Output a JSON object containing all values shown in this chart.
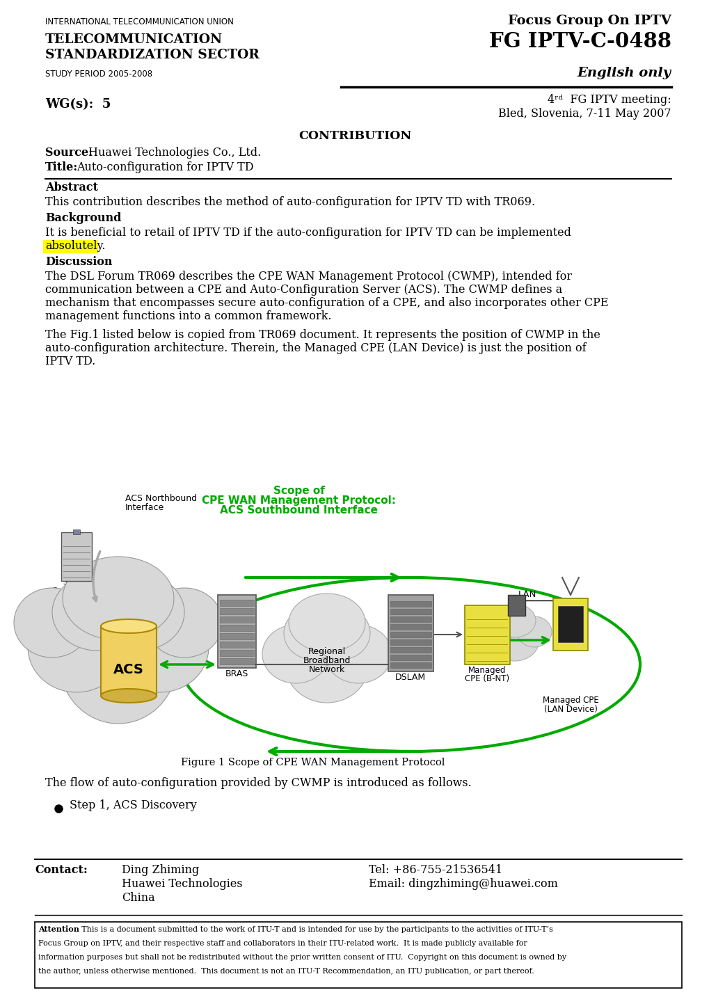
{
  "bg_color": "#ffffff",
  "header_left_line1": "INTERNATIONAL TELECOMMUNICATION UNION",
  "header_right_line1": "Focus Group On IPTV",
  "header_right_line2": "FG IPTV-C-0488",
  "header_left_bold1": "TELECOMMUNICATION",
  "header_left_bold2": "STANDARDIZATION SECTOR",
  "header_left_line3": "STUDY PERIOD 2005-2008",
  "header_right_line3": "English only",
  "wg_label": "WG(s):  5",
  "meeting_line1": "4ʳᵈ  FG IPTV meeting:",
  "meeting_line2": "Bled, Slovenia, 7-11 May 2007",
  "contrib_title": "CONTRIBUTION",
  "source_label": "Source:",
  "source_value": "Huawei Technologies Co., Ltd.",
  "title_label": "Title:",
  "title_value": "Auto-configuration for IPTV TD",
  "abstract_heading": "Abstract",
  "abstract_text": "This contribution describes the method of auto-configuration for IPTV TD with TR069.",
  "background_heading": "Background",
  "background_text1": "It is beneficial to retail of IPTV TD if the auto-configuration for IPTV TD can be implemented",
  "background_text2": "absolutely.",
  "discussion_heading": "Discussion",
  "disc1_l1": "The DSL Forum TR069 describes the CPE WAN Management Protocol (CWMP), intended for",
  "disc1_l2": "communication between a CPE and Auto-Configuration Server (ACS). The CWMP defines a",
  "disc1_l3": "mechanism that encompasses secure auto-configuration of a CPE, and also incorporates other CPE",
  "disc1_l4": "management functions into a common framework.",
  "disc2_l1": "The Fig.1 listed below is copied from TR069 document. It represents the position of CWMP in the",
  "disc2_l2": "auto-configuration architecture. Therein, the Managed CPE (LAN Device) is just the position of",
  "disc2_l3": "IPTV TD.",
  "fig_caption": "Figure 1 Scope of CPE WAN Management Protocol",
  "flow_text": "The flow of auto-configuration provided by CWMP is introduced as follows.",
  "bullet_text": "Step 1, ACS Discovery",
  "contact_label": "Contact:",
  "contact_name": "Ding Zhiming",
  "contact_org": "Huawei Technologies",
  "contact_country": "China",
  "contact_tel": "Tel: +86-755-21536541",
  "contact_email": "Email: dingzhiming@huawei.com",
  "attn_line1": "Attention: This is a document submitted to the work of ITU-T and is intended for use by the participants to the activities of ITU-T’s",
  "attn_line2": "Focus Group on IPTV, and their respective staff and collaborators in their ITU-related work.  It is made publicly available for",
  "attn_line3": "information purposes but shall not be redistributed without the prior written consent of ITU.  Copyright on this document is owned by",
  "attn_line4": "the author, unless otherwise mentioned.  This document is not an ITU-T Recommendation, an ITU publication, or part thereof."
}
